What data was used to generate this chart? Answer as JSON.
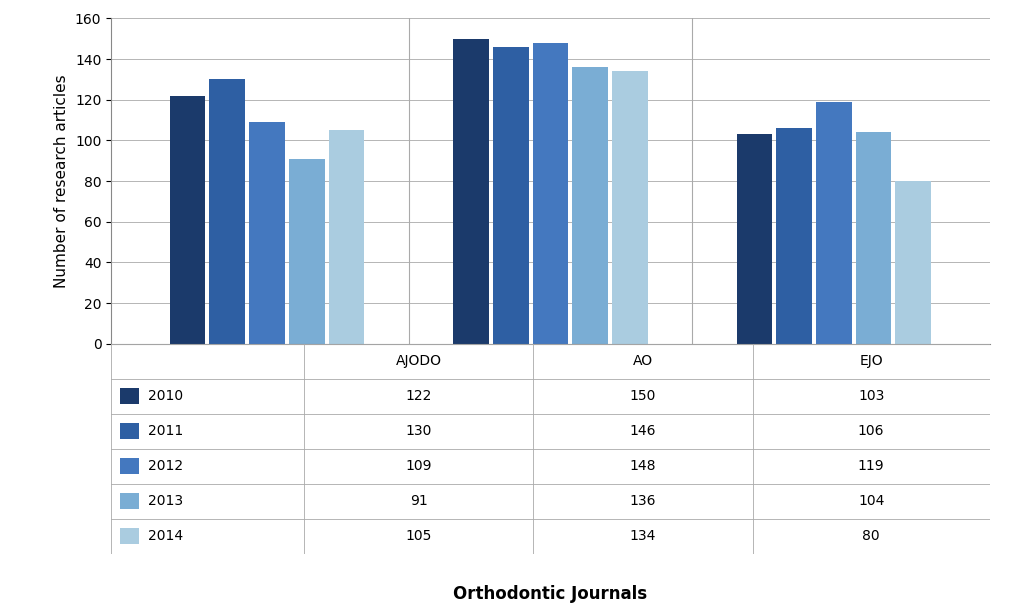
{
  "journals": [
    "AJODO",
    "AO",
    "EJO"
  ],
  "years": [
    "2010",
    "2011",
    "2012",
    "2013",
    "2014"
  ],
  "values": {
    "AJODO": [
      122,
      130,
      109,
      91,
      105
    ],
    "AO": [
      150,
      146,
      148,
      136,
      134
    ],
    "EJO": [
      103,
      106,
      119,
      104,
      80
    ]
  },
  "bar_colors": [
    "#1B3A6B",
    "#2E5FA3",
    "#4478BF",
    "#7AADD4",
    "#AACCE0"
  ],
  "ylabel": "Number of research articles",
  "xlabel": "Orthodontic Journals",
  "ylim": [
    0,
    160
  ],
  "yticks": [
    0,
    20,
    40,
    60,
    80,
    100,
    120,
    140,
    160
  ],
  "figure_bg": "#FFFFFF",
  "bar_width": 0.14,
  "group_centers": [
    1.0,
    2.0,
    3.0
  ],
  "grid_color": "#AAAAAA",
  "spine_color": "#888888"
}
